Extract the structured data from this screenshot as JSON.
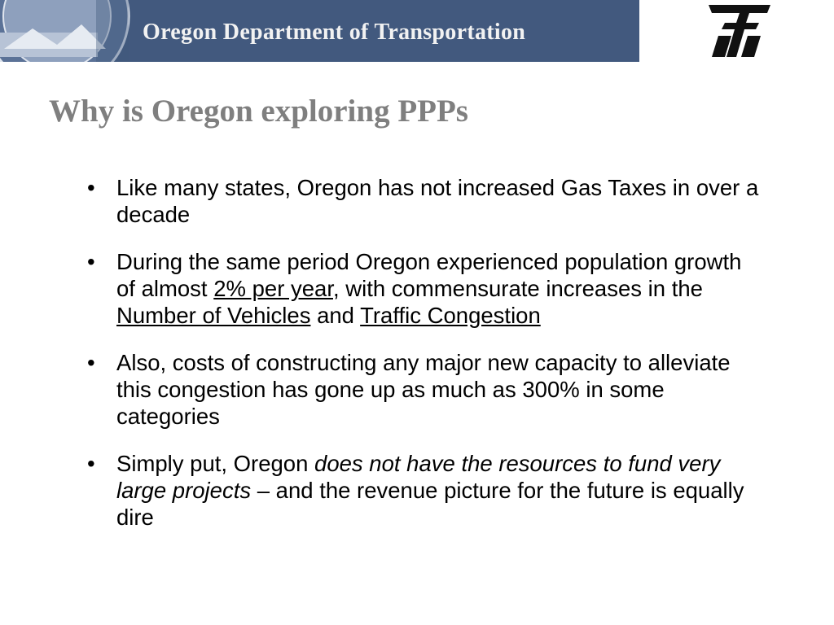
{
  "header": {
    "agency": "Oregon Department of Transportation"
  },
  "title": "Why is Oregon exploring PPPs",
  "bullets": [
    [
      {
        "text": "Like many states, Oregon has not increased Gas Taxes in over a decade"
      }
    ],
    [
      {
        "text": "During the same period Oregon experienced population growth of almost "
      },
      {
        "text": "2% per year",
        "underline": true
      },
      {
        "text": ", with commensurate increases in the "
      },
      {
        "text": "Number of Vehicles",
        "underline": true
      },
      {
        "text": " and "
      },
      {
        "text": "Traffic Congestion",
        "underline": true
      }
    ],
    [
      {
        "text": "Also, costs of constructing any major new capacity to alleviate this congestion has gone up as much as 300% in some categories"
      }
    ],
    [
      {
        "text": "Simply put, Oregon "
      },
      {
        "text": "does not have the resources to fund very large projects",
        "italic": true
      },
      {
        "text": " – and the revenue picture for the future is equally dire"
      }
    ]
  ]
}
